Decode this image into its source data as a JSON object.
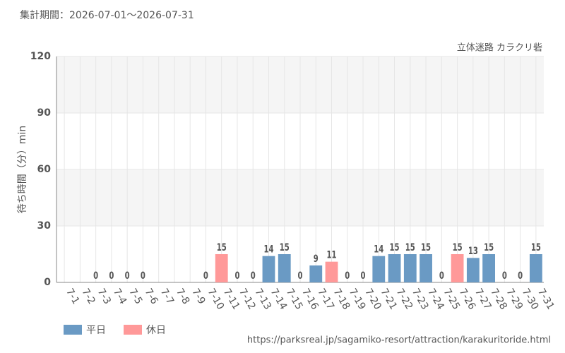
{
  "chart_data": {
    "type": "bar",
    "title": "集計期間：2026-07-01～2026-07-31",
    "subtitle": "立体迷路 カラクリ砦",
    "y_label": "待ち時間（分）min",
    "source": "https://parksreal.jp/sagamiko-resort/attraction/karakuritoride.html",
    "categories": [
      "7-1",
      "7-2",
      "7-3",
      "7-4",
      "7-5",
      "7-6",
      "7-7",
      "7-8",
      "7-9",
      "7-10",
      "7-11",
      "7-12",
      "7-13",
      "7-14",
      "7-15",
      "7-16",
      "7-17",
      "7-18",
      "7-19",
      "7-20",
      "7-21",
      "7-22",
      "7-23",
      "7-24",
      "7-25",
      "7-26",
      "7-27",
      "7-28",
      "7-29",
      "7-30",
      "7-31"
    ],
    "series": [
      {
        "name": "平日",
        "color": "#6a9ac4",
        "values": [
          null,
          null,
          0,
          null,
          null,
          0,
          null,
          null,
          null,
          0,
          null,
          null,
          0,
          14,
          15,
          0,
          9,
          null,
          null,
          null,
          14,
          15,
          15,
          15,
          null,
          null,
          13,
          15,
          0,
          0,
          15
        ]
      },
      {
        "name": "休日",
        "color": "#ff9999",
        "values": [
          null,
          null,
          null,
          0,
          0,
          null,
          null,
          null,
          null,
          null,
          15,
          0,
          null,
          null,
          null,
          null,
          null,
          11,
          0,
          0,
          null,
          null,
          null,
          null,
          0,
          15,
          null,
          null,
          null,
          null,
          null
        ]
      }
    ],
    "ylim": [
      0,
      120
    ],
    "yticks": [
      0,
      30,
      60,
      90,
      120
    ],
    "grid": true,
    "legend": "bottom-left"
  }
}
